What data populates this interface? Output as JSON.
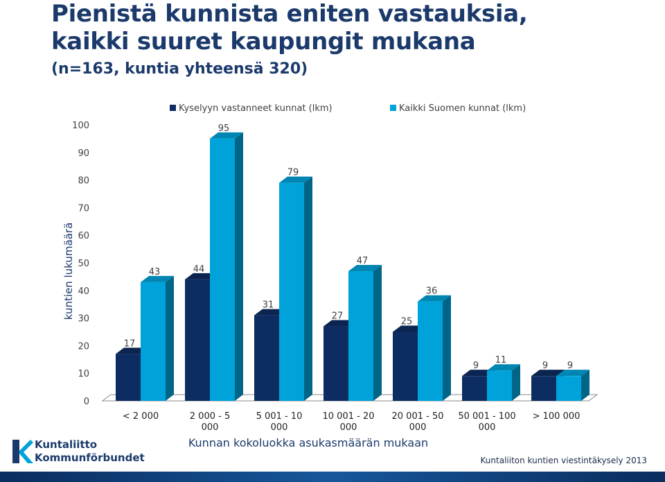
{
  "header": {
    "title_line1": "Pienistä kunnista eniten vastauksia,",
    "title_line2": "kaikki suuret kaupungit mukana",
    "subtitle": "(n=163, kuntia yhteensä 320)"
  },
  "chart_data": {
    "type": "bar",
    "categories": [
      [
        "< 2 000"
      ],
      [
        "2 000 - 5",
        "000"
      ],
      [
        "5 001 - 10",
        "000"
      ],
      [
        "10 001 - 20",
        "000"
      ],
      [
        "20 001 - 50",
        "000"
      ],
      [
        "50 001 - 100",
        "000"
      ],
      [
        "> 100 000"
      ]
    ],
    "series": [
      {
        "name": "Kyselyyn vastanneet kunnat (lkm)",
        "values": [
          17,
          44,
          31,
          27,
          25,
          9,
          9
        ],
        "color": "#0d2d62"
      },
      {
        "name": "Kaikki Suomen kunnat (lkm)",
        "values": [
          43,
          95,
          79,
          47,
          36,
          11,
          9
        ],
        "color": "#00a3d9"
      }
    ],
    "xlabel": "Kunnan kokoluokka asukasmäärän mukaan",
    "ylabel": "kuntien lukumäärä",
    "ylim": [
      0,
      100
    ],
    "yticks": [
      0,
      10,
      20,
      30,
      40,
      50,
      60,
      70,
      80,
      90,
      100
    ],
    "legend_position": "top",
    "grid": false,
    "style": "3d"
  },
  "footer": {
    "logo_line1": "Kuntaliitto",
    "logo_line2": "Kommunförbundet",
    "source": "Kuntaliiton kuntien viestintäkysely 2013"
  }
}
